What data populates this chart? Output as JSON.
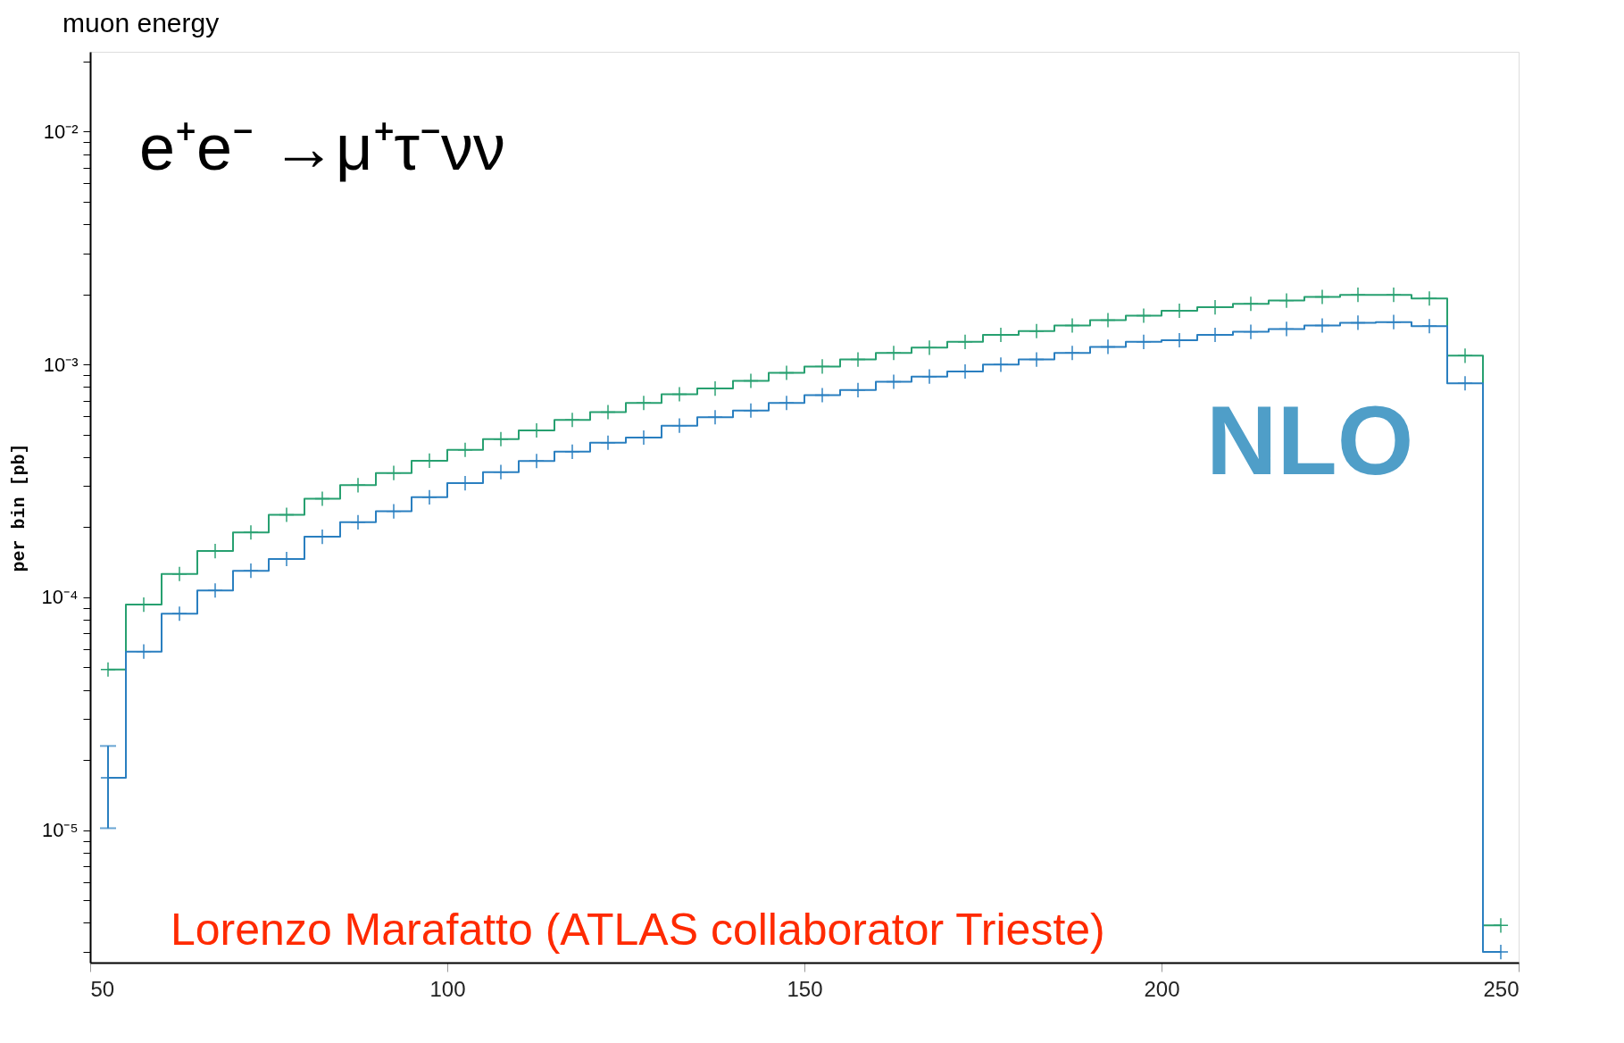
{
  "chart_data": {
    "type": "step",
    "title": "muon energy",
    "ylabel": "per bin [pb]",
    "x": [
      52.5,
      57.5,
      62.5,
      67.5,
      72.5,
      77.5,
      82.5,
      87.5,
      92.5,
      97.5,
      102.5,
      107.5,
      112.5,
      117.5,
      122.5,
      127.5,
      132.5,
      137.5,
      142.5,
      147.5,
      152.5,
      157.5,
      162.5,
      167.5,
      172.5,
      177.5,
      182.5,
      187.5,
      192.5,
      197.5,
      202.5,
      207.5,
      212.5,
      217.5,
      222.5,
      227.5,
      232.5,
      237.5,
      242.5,
      247.5
    ],
    "series": [
      {
        "color": "#27a070",
        "values": [
          4.9e-05,
          9.3e-05,
          0.000126,
          0.000158,
          0.00019,
          0.000226,
          0.000265,
          0.000303,
          0.000342,
          0.000386,
          0.00043,
          0.000478,
          0.000521,
          0.000578,
          0.000624,
          0.000683,
          0.000745,
          0.000788,
          0.00085,
          0.00092,
          0.00098,
          0.00105,
          0.00112,
          0.00118,
          0.00125,
          0.00134,
          0.00139,
          0.00147,
          0.00155,
          0.00162,
          0.0017,
          0.00176,
          0.00182,
          0.00188,
          0.00195,
          0.00199,
          0.00199,
          0.00192,
          0.00109,
          3.9e-06
        ]
      },
      {
        "color": "#2a7fc0",
        "values": [
          1.68e-05,
          5.85e-05,
          8.5e-05,
          0.000107,
          0.00013,
          0.000146,
          0.000182,
          0.00021,
          0.000234,
          0.000269,
          0.000309,
          0.000345,
          0.000385,
          0.000422,
          0.000461,
          0.000485,
          0.000546,
          0.000593,
          0.000634,
          0.000683,
          0.000738,
          0.000776,
          0.000843,
          0.000887,
          0.000933,
          0.000998,
          0.00105,
          0.00112,
          0.00119,
          0.00125,
          0.00127,
          0.00134,
          0.00138,
          0.00142,
          0.00147,
          0.00151,
          0.00152,
          0.00146,
          0.00083,
          3e-06
        ],
        "errors": [
          [
            1.02e-05,
            2.3e-05
          ],
          null,
          null,
          null,
          null,
          null,
          null,
          null,
          null,
          null,
          null,
          null,
          null,
          null,
          null,
          null,
          null,
          null,
          null,
          null,
          null,
          null,
          null,
          null,
          null,
          null,
          null,
          null,
          null,
          null,
          null,
          null,
          null,
          null,
          null,
          null,
          null,
          null,
          null,
          null
        ]
      }
    ],
    "marker": "cross",
    "log": "y",
    "grid": false,
    "legend": false,
    "xlim": [
      50,
      250
    ],
    "xticks": [
      50,
      100,
      150,
      200,
      250
    ],
    "ylim": [
      2.7e-06,
      0.022
    ],
    "yticks": [
      {
        "value": 3e-06,
        "label": null
      },
      {
        "value": 4e-06,
        "label": null
      },
      {
        "value": 5e-06,
        "label": null
      },
      {
        "value": 6e-06,
        "label": null
      },
      {
        "value": 7e-06,
        "label": null
      },
      {
        "value": 8e-06,
        "label": null
      },
      {
        "value": 9e-06,
        "label": null
      },
      {
        "value": 1e-05,
        "label": "10⁻⁵"
      },
      {
        "value": 2e-05,
        "label": null
      },
      {
        "value": 3e-05,
        "label": null
      },
      {
        "value": 4e-05,
        "label": null
      },
      {
        "value": 5e-05,
        "label": null
      },
      {
        "value": 6e-05,
        "label": null
      },
      {
        "value": 7e-05,
        "label": null
      },
      {
        "value": 8e-05,
        "label": null
      },
      {
        "value": 9e-05,
        "label": null
      },
      {
        "value": 0.0001,
        "label": "10⁻⁴"
      },
      {
        "value": 0.0002,
        "label": null
      },
      {
        "value": 0.0003,
        "label": null
      },
      {
        "value": 0.0004,
        "label": null
      },
      {
        "value": 0.0005,
        "label": null
      },
      {
        "value": 0.0006,
        "label": null
      },
      {
        "value": 0.0007,
        "label": null
      },
      {
        "value": 0.0008,
        "label": null
      },
      {
        "value": 0.0009,
        "label": null
      },
      {
        "value": 0.001,
        "label": "10⁻³"
      },
      {
        "value": 0.002,
        "label": null
      },
      {
        "value": 0.003,
        "label": null
      },
      {
        "value": 0.004,
        "label": null
      },
      {
        "value": 0.005,
        "label": null
      },
      {
        "value": 0.006,
        "label": null
      },
      {
        "value": 0.007,
        "label": null
      },
      {
        "value": 0.008,
        "label": null
      },
      {
        "value": 0.009,
        "label": null
      },
      {
        "value": 0.01,
        "label": "10⁻²"
      },
      {
        "value": 0.02,
        "label": null
      }
    ],
    "annotations": [
      "e⁺e⁻ →μ⁺τ⁻νν",
      "NLO",
      "Lorenzo Marafatto (ATLAS collaborator Trieste)"
    ]
  }
}
